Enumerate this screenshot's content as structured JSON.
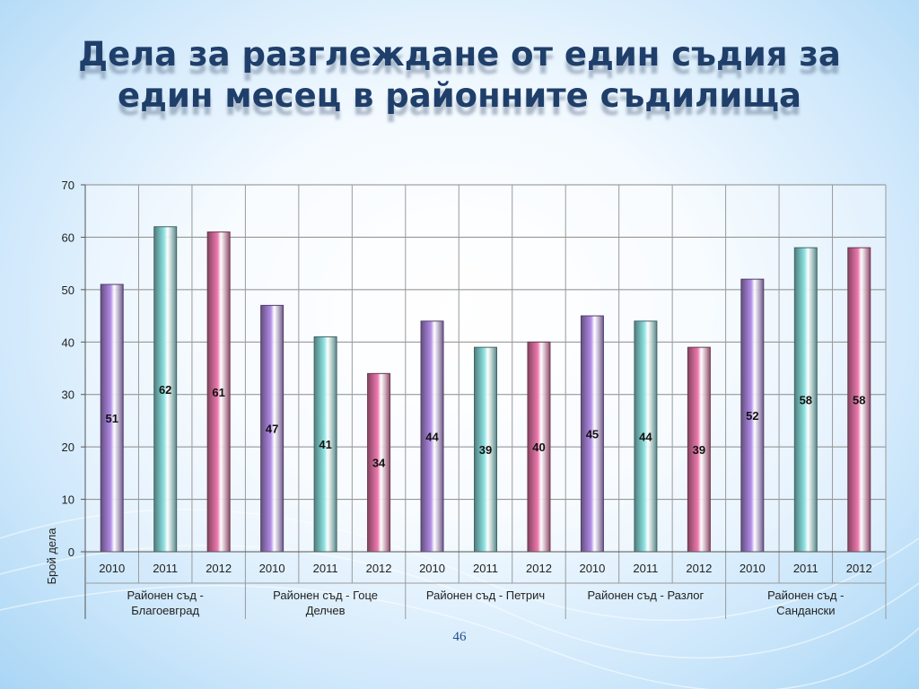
{
  "slide": {
    "title": "Дела за разглеждане от един съдия за един месец в районните съдилища",
    "page_number": "46"
  },
  "colors": {
    "2010": "#b48ee8",
    "2011": "#8fe3e3",
    "2012": "#ef7aae",
    "title": "#1f3f6a"
  },
  "chart_data": {
    "type": "bar",
    "title": "",
    "xlabel": "",
    "ylabel": "Брой дела",
    "ylim": [
      0,
      70
    ],
    "yticks": [
      0,
      10,
      20,
      30,
      40,
      50,
      60,
      70
    ],
    "grid": true,
    "legend": "none",
    "groups": [
      {
        "name": [
          "Районен съд -",
          "Благоевград"
        ],
        "years": [
          "2010",
          "2011",
          "2012"
        ],
        "values": [
          51,
          62,
          61
        ]
      },
      {
        "name": [
          "Районен съд - Гоце",
          "Делчев"
        ],
        "years": [
          "2010",
          "2011",
          "2012"
        ],
        "values": [
          47,
          41,
          34
        ]
      },
      {
        "name": [
          "Районен съд - Петрич"
        ],
        "years": [
          "2010",
          "2011",
          "2012"
        ],
        "values": [
          44,
          39,
          40
        ]
      },
      {
        "name": [
          "Районен съд - Разлог"
        ],
        "years": [
          "2010",
          "2011",
          "2012"
        ],
        "values": [
          45,
          44,
          39
        ]
      },
      {
        "name": [
          "Районен съд -",
          "Сандански"
        ],
        "years": [
          "2010",
          "2011",
          "2012"
        ],
        "values": [
          52,
          58,
          58
        ]
      }
    ]
  }
}
